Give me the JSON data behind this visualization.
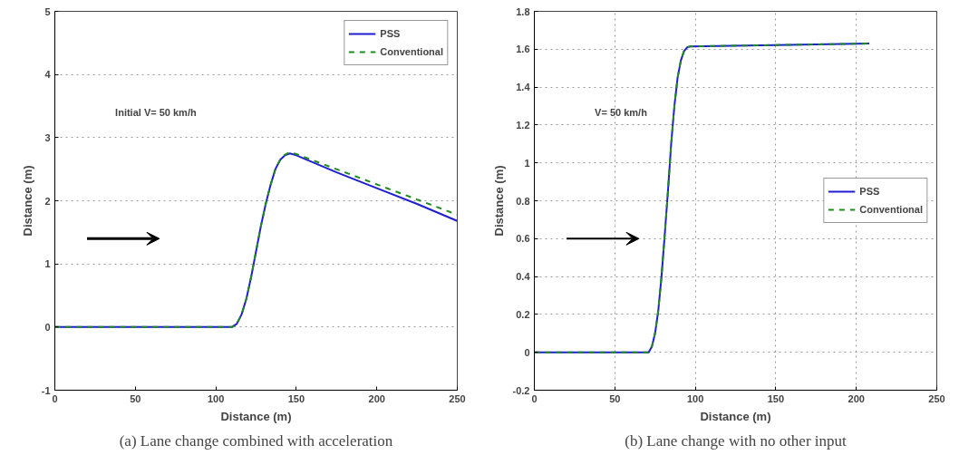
{
  "chart_data": [
    {
      "type": "line",
      "xlabel": "Distance (m)",
      "ylabel": "Distance (m)",
      "xlim": [
        0,
        250
      ],
      "ylim": [
        -1,
        5
      ],
      "xticks": [
        0,
        50,
        100,
        150,
        200,
        250
      ],
      "yticks": [
        -1,
        0,
        1,
        2,
        3,
        4,
        5
      ],
      "grid": "y",
      "legend": "top right",
      "annotations": [
        "Initial V= 50 km/h",
        "(a) Lane change combined with acceleration"
      ],
      "series": [
        {
          "name": "PSS",
          "color": "#1f1fd0",
          "line_style": "solid",
          "x": [
            0,
            110,
            113,
            116,
            119,
            122,
            125,
            128,
            131,
            134,
            137,
            140,
            143,
            146,
            150,
            175,
            200,
            225,
            250
          ],
          "values": [
            0,
            0,
            0.05,
            0.2,
            0.45,
            0.8,
            1.2,
            1.6,
            1.95,
            2.25,
            2.5,
            2.65,
            2.72,
            2.75,
            2.72,
            2.45,
            2.2,
            1.95,
            1.68
          ]
        },
        {
          "name": "Conventional",
          "color": "#1e8c1e",
          "line_style": "dashed",
          "x": [
            0,
            110,
            113,
            116,
            119,
            122,
            125,
            128,
            131,
            134,
            137,
            140,
            143,
            146,
            150,
            175,
            200,
            225,
            250
          ],
          "values": [
            0,
            0,
            0.05,
            0.2,
            0.45,
            0.8,
            1.2,
            1.6,
            1.95,
            2.25,
            2.5,
            2.65,
            2.73,
            2.77,
            2.74,
            2.5,
            2.26,
            2.02,
            1.78
          ]
        }
      ]
    },
    {
      "type": "line",
      "xlabel": "Distance (m)",
      "ylabel": "Distance (m)",
      "xlim": [
        0,
        250
      ],
      "ylim": [
        -0.2,
        1.8
      ],
      "xticks": [
        0,
        50,
        100,
        150,
        200,
        250
      ],
      "yticks": [
        -0.2,
        0,
        0.2,
        0.4,
        0.6,
        0.8,
        1,
        1.2,
        1.4,
        1.6,
        1.8
      ],
      "grid": true,
      "legend": "right",
      "annotations": [
        "V= 50 km/h",
        "(b) Lane change with no other input"
      ],
      "series": [
        {
          "name": "PSS",
          "color": "#1f1fd0",
          "line_style": "solid",
          "x": [
            0,
            71,
            73,
            75,
            77,
            79,
            81,
            83,
            85,
            87,
            89,
            91,
            93,
            95,
            97,
            150,
            208
          ],
          "values": [
            0,
            0,
            0.03,
            0.1,
            0.22,
            0.4,
            0.62,
            0.85,
            1.1,
            1.3,
            1.45,
            1.54,
            1.59,
            1.61,
            1.615,
            1.622,
            1.63
          ]
        },
        {
          "name": "Conventional",
          "color": "#1e8c1e",
          "line_style": "dashed",
          "x": [
            0,
            71,
            73,
            75,
            77,
            79,
            81,
            83,
            85,
            87,
            89,
            91,
            93,
            95,
            97,
            150,
            208
          ],
          "values": [
            0,
            0,
            0.03,
            0.1,
            0.22,
            0.4,
            0.62,
            0.85,
            1.1,
            1.3,
            1.45,
            1.54,
            1.59,
            1.61,
            1.615,
            1.622,
            1.63
          ]
        }
      ]
    }
  ]
}
